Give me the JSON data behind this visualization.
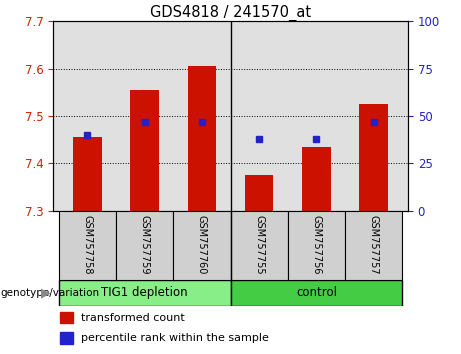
{
  "title": "GDS4818 / 241570_at",
  "samples": [
    "GSM757758",
    "GSM757759",
    "GSM757760",
    "GSM757755",
    "GSM757756",
    "GSM757757"
  ],
  "bar_bottoms": [
    7.3,
    7.3,
    7.3,
    7.3,
    7.3,
    7.3
  ],
  "bar_tops": [
    7.455,
    7.555,
    7.605,
    7.375,
    7.435,
    7.525
  ],
  "percentile_pct": [
    40,
    47,
    47,
    38,
    38,
    47
  ],
  "ylim": [
    7.3,
    7.7
  ],
  "yticks": [
    7.3,
    7.4,
    7.5,
    7.6,
    7.7
  ],
  "right_yticks": [
    0,
    25,
    50,
    75,
    100
  ],
  "right_ylim": [
    0,
    100
  ],
  "bar_color": "#cc1100",
  "dot_color": "#2222cc",
  "group1_label": "TIG1 depletion",
  "group2_label": "control",
  "group1_color": "#88ee88",
  "group2_color": "#44cc44",
  "legend_bar_label": "transformed count",
  "legend_dot_label": "percentile rank within the sample",
  "genotype_label": "genotype/variation",
  "tick_color_left": "#cc2200",
  "tick_color_right": "#2222cc",
  "bar_width": 0.5,
  "plot_bg": "#e0e0e0",
  "label_area_bg": "#d0d0d0",
  "n_samples": 6,
  "n_group1": 3
}
